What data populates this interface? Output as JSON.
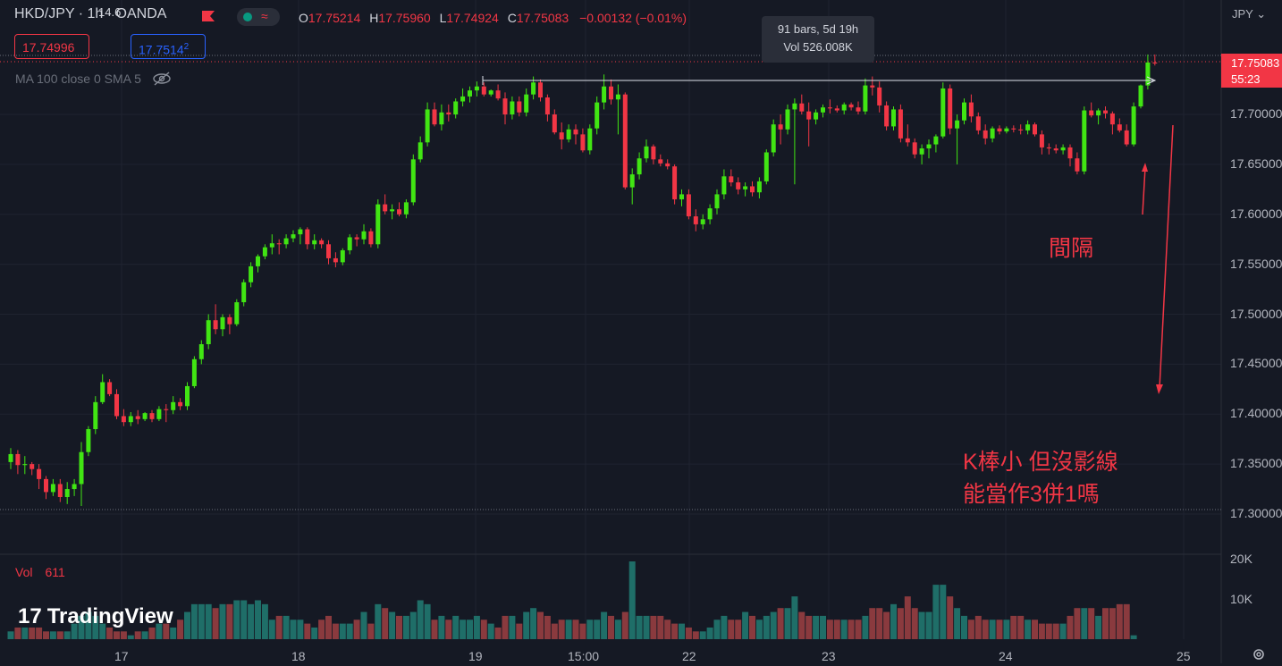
{
  "header": {
    "symbol": "HKD/JPY · 1h · OANDA",
    "open_label": "O",
    "open": "17.75214",
    "high_label": "H",
    "high": "17.75960",
    "low_label": "L",
    "low": "17.74924",
    "close_label": "C",
    "close": "17.75083",
    "change": "−0.00132 (−0.01%)",
    "bid": "17.74996",
    "spread": "14.6",
    "ask": "17.7514",
    "ask_suffix": "2",
    "indicator": "MA 100 close 0 SMA 5"
  },
  "tooltip": {
    "bars": "91 bars, 5d 19h",
    "vol": "Vol 526.008K"
  },
  "price_axis": {
    "currency": "JPY",
    "labels": [
      "17.70000",
      "17.65000",
      "17.60000",
      "17.55000",
      "17.50000",
      "17.45000",
      "17.40000",
      "17.35000",
      "17.30000"
    ],
    "last_price": "17.75083",
    "countdown": "55:23"
  },
  "time_axis": {
    "labels": [
      "17",
      "18",
      "19",
      "15:00",
      "22",
      "23",
      "24",
      "25"
    ]
  },
  "volume": {
    "label": "Vol",
    "value": "611",
    "axis_labels": [
      "20K",
      "10K"
    ]
  },
  "annotations": {
    "gap": "間隔",
    "question_line1": "K棒小 但沒影線",
    "question_line2": "能當作3併1嗎"
  },
  "branding": {
    "logo_text": "TradingView"
  },
  "colors": {
    "background": "#151924",
    "up": "#41e513",
    "down": "#f23645",
    "vol_up": "#1f6e68",
    "vol_down": "#8a3a3e",
    "accent": "#2962ff"
  },
  "chart_data": {
    "type": "candlestick",
    "candles": [
      [
        17.352,
        17.366,
        17.345,
        17.36
      ],
      [
        17.36,
        17.364,
        17.34,
        17.349
      ],
      [
        17.349,
        17.358,
        17.34,
        17.35
      ],
      [
        17.35,
        17.352,
        17.339,
        17.345
      ],
      [
        17.345,
        17.35,
        17.325,
        17.335
      ],
      [
        17.335,
        17.338,
        17.315,
        17.322
      ],
      [
        17.322,
        17.335,
        17.318,
        17.33
      ],
      [
        17.33,
        17.335,
        17.312,
        17.317
      ],
      [
        17.317,
        17.332,
        17.31,
        17.325
      ],
      [
        17.325,
        17.335,
        17.318,
        17.33
      ],
      [
        17.33,
        17.372,
        17.308,
        17.362
      ],
      [
        17.362,
        17.388,
        17.358,
        17.385
      ],
      [
        17.385,
        17.418,
        17.38,
        17.412
      ],
      [
        17.412,
        17.44,
        17.41,
        17.432
      ],
      [
        17.432,
        17.435,
        17.418,
        17.42
      ],
      [
        17.42,
        17.425,
        17.395,
        17.398
      ],
      [
        17.398,
        17.405,
        17.388,
        17.392
      ],
      [
        17.392,
        17.402,
        17.388,
        17.398
      ],
      [
        17.398,
        17.404,
        17.39,
        17.395
      ],
      [
        17.395,
        17.402,
        17.393,
        17.401
      ],
      [
        17.401,
        17.404,
        17.392,
        17.395
      ],
      [
        17.395,
        17.408,
        17.393,
        17.405
      ],
      [
        17.405,
        17.41,
        17.392,
        17.404
      ],
      [
        17.404,
        17.418,
        17.4,
        17.412
      ],
      [
        17.412,
        17.416,
        17.404,
        17.408
      ],
      [
        17.408,
        17.432,
        17.404,
        17.428
      ],
      [
        17.428,
        17.458,
        17.426,
        17.455
      ],
      [
        17.455,
        17.474,
        17.45,
        17.47
      ],
      [
        17.47,
        17.5,
        17.465,
        17.494
      ],
      [
        17.494,
        17.51,
        17.48,
        17.485
      ],
      [
        17.485,
        17.5,
        17.478,
        17.497
      ],
      [
        17.497,
        17.5,
        17.48,
        17.49
      ],
      [
        17.49,
        17.515,
        17.488,
        17.512
      ],
      [
        17.512,
        17.535,
        17.508,
        17.532
      ],
      [
        17.532,
        17.552,
        17.527,
        17.548
      ],
      [
        17.548,
        17.56,
        17.542,
        17.558
      ],
      [
        17.558,
        17.57,
        17.555,
        17.567
      ],
      [
        17.567,
        17.58,
        17.56,
        17.571
      ],
      [
        17.571,
        17.575,
        17.56,
        17.57
      ],
      [
        17.57,
        17.58,
        17.566,
        17.576
      ],
      [
        17.576,
        17.584,
        17.572,
        17.58
      ],
      [
        17.58,
        17.587,
        17.57,
        17.585
      ],
      [
        17.585,
        17.587,
        17.565,
        17.57
      ],
      [
        17.57,
        17.58,
        17.565,
        17.574
      ],
      [
        17.574,
        17.576,
        17.566,
        17.57
      ],
      [
        17.57,
        17.574,
        17.55,
        17.556
      ],
      [
        17.556,
        17.562,
        17.547,
        17.552
      ],
      [
        17.552,
        17.566,
        17.549,
        17.564
      ],
      [
        17.564,
        17.58,
        17.56,
        17.577
      ],
      [
        17.577,
        17.58,
        17.568,
        17.575
      ],
      [
        17.575,
        17.59,
        17.57,
        17.583
      ],
      [
        17.583,
        17.586,
        17.567,
        17.57
      ],
      [
        17.57,
        17.615,
        17.566,
        17.61
      ],
      [
        17.61,
        17.62,
        17.6,
        17.603
      ],
      [
        17.603,
        17.61,
        17.595,
        17.605
      ],
      [
        17.605,
        17.612,
        17.598,
        17.6
      ],
      [
        17.6,
        17.615,
        17.596,
        17.612
      ],
      [
        17.612,
        17.66,
        17.609,
        17.655
      ],
      [
        17.655,
        17.678,
        17.652,
        17.672
      ],
      [
        17.672,
        17.712,
        17.668,
        17.705
      ],
      [
        17.705,
        17.712,
        17.688,
        17.69
      ],
      [
        17.69,
        17.71,
        17.684,
        17.702
      ],
      [
        17.702,
        17.71,
        17.693,
        17.7
      ],
      [
        17.7,
        17.716,
        17.696,
        17.713
      ],
      [
        17.713,
        17.726,
        17.708,
        17.718
      ],
      [
        17.718,
        17.728,
        17.712,
        17.724
      ],
      [
        17.724,
        17.733,
        17.718,
        17.728
      ],
      [
        17.728,
        17.732,
        17.718,
        17.72
      ],
      [
        17.72,
        17.725,
        17.718,
        17.724
      ],
      [
        17.724,
        17.73,
        17.714,
        17.716
      ],
      [
        17.716,
        17.722,
        17.69,
        17.7
      ],
      [
        17.7,
        17.718,
        17.695,
        17.713
      ],
      [
        17.713,
        17.718,
        17.698,
        17.702
      ],
      [
        17.702,
        17.726,
        17.698,
        17.72
      ],
      [
        17.72,
        17.738,
        17.715,
        17.732
      ],
      [
        17.732,
        17.735,
        17.713,
        17.717
      ],
      [
        17.717,
        17.72,
        17.693,
        17.7
      ],
      [
        17.7,
        17.705,
        17.68,
        17.682
      ],
      [
        17.682,
        17.692,
        17.665,
        17.675
      ],
      [
        17.675,
        17.69,
        17.672,
        17.685
      ],
      [
        17.685,
        17.69,
        17.67,
        17.68
      ],
      [
        17.68,
        17.686,
        17.662,
        17.664
      ],
      [
        17.664,
        17.69,
        17.66,
        17.686
      ],
      [
        17.686,
        17.718,
        17.68,
        17.712
      ],
      [
        17.712,
        17.74,
        17.705,
        17.728
      ],
      [
        17.728,
        17.735,
        17.71,
        17.715
      ],
      [
        17.715,
        17.73,
        17.68,
        17.72
      ],
      [
        17.72,
        17.722,
        17.625,
        17.627
      ],
      [
        17.627,
        17.646,
        17.61,
        17.64
      ],
      [
        17.64,
        17.662,
        17.635,
        17.656
      ],
      [
        17.656,
        17.675,
        17.652,
        17.668
      ],
      [
        17.668,
        17.67,
        17.65,
        17.655
      ],
      [
        17.655,
        17.66,
        17.648,
        17.651
      ],
      [
        17.651,
        17.655,
        17.645,
        17.648
      ],
      [
        17.648,
        17.65,
        17.61,
        17.615
      ],
      [
        17.615,
        17.625,
        17.608,
        17.62
      ],
      [
        17.62,
        17.625,
        17.595,
        17.598
      ],
      [
        17.598,
        17.605,
        17.583,
        17.59
      ],
      [
        17.59,
        17.6,
        17.585,
        17.595
      ],
      [
        17.595,
        17.61,
        17.59,
        17.606
      ],
      [
        17.606,
        17.625,
        17.6,
        17.62
      ],
      [
        17.62,
        17.645,
        17.615,
        17.638
      ],
      [
        17.638,
        17.645,
        17.628,
        17.632
      ],
      [
        17.632,
        17.637,
        17.62,
        17.625
      ],
      [
        17.625,
        17.632,
        17.618,
        17.628
      ],
      [
        17.628,
        17.633,
        17.618,
        17.622
      ],
      [
        17.622,
        17.637,
        17.616,
        17.633
      ],
      [
        17.633,
        17.665,
        17.63,
        17.662
      ],
      [
        17.662,
        17.695,
        17.658,
        17.69
      ],
      [
        17.69,
        17.7,
        17.67,
        17.685
      ],
      [
        17.685,
        17.71,
        17.68,
        17.705
      ],
      [
        17.705,
        17.716,
        17.63,
        17.711
      ],
      [
        17.711,
        17.72,
        17.7,
        17.703
      ],
      [
        17.703,
        17.712,
        17.668,
        17.695
      ],
      [
        17.695,
        17.705,
        17.69,
        17.702
      ],
      [
        17.702,
        17.71,
        17.697,
        17.707
      ],
      [
        17.707,
        17.715,
        17.701,
        17.706
      ],
      [
        17.706,
        17.709,
        17.702,
        17.704
      ],
      [
        17.704,
        17.712,
        17.7,
        17.71
      ],
      [
        17.71,
        17.712,
        17.704,
        17.707
      ],
      [
        17.707,
        17.713,
        17.7,
        17.703
      ],
      [
        17.703,
        17.736,
        17.7,
        17.729
      ],
      [
        17.729,
        17.738,
        17.719,
        17.727
      ],
      [
        17.727,
        17.733,
        17.702,
        17.709
      ],
      [
        17.709,
        17.713,
        17.684,
        17.688
      ],
      [
        17.688,
        17.708,
        17.684,
        17.705
      ],
      [
        17.705,
        17.71,
        17.672,
        17.676
      ],
      [
        17.676,
        17.69,
        17.668,
        17.672
      ],
      [
        17.672,
        17.676,
        17.656,
        17.66
      ],
      [
        17.66,
        17.67,
        17.65,
        17.666
      ],
      [
        17.666,
        17.675,
        17.656,
        17.67
      ],
      [
        17.67,
        17.68,
        17.662,
        17.678
      ],
      [
        17.678,
        17.732,
        17.676,
        17.726
      ],
      [
        17.726,
        17.73,
        17.68,
        17.686
      ],
      [
        17.686,
        17.7,
        17.65,
        17.694
      ],
      [
        17.694,
        17.716,
        17.69,
        17.712
      ],
      [
        17.712,
        17.72,
        17.692,
        17.698
      ],
      [
        17.698,
        17.702,
        17.68,
        17.684
      ],
      [
        17.684,
        17.69,
        17.67,
        17.676
      ],
      [
        17.676,
        17.688,
        17.672,
        17.686
      ],
      [
        17.686,
        17.689,
        17.68,
        17.683
      ],
      [
        17.683,
        17.688,
        17.681,
        17.686
      ],
      [
        17.686,
        17.689,
        17.682,
        17.685
      ],
      [
        17.685,
        17.69,
        17.68,
        17.684
      ],
      [
        17.684,
        17.694,
        17.68,
        17.69
      ],
      [
        17.69,
        17.692,
        17.678,
        17.68
      ],
      [
        17.68,
        17.684,
        17.66,
        17.667
      ],
      [
        17.667,
        17.671,
        17.66,
        17.666
      ],
      [
        17.666,
        17.67,
        17.661,
        17.664
      ],
      [
        17.664,
        17.67,
        17.66,
        17.667
      ],
      [
        17.667,
        17.67,
        17.648,
        17.656
      ],
      [
        17.656,
        17.662,
        17.64,
        17.643
      ],
      [
        17.643,
        17.708,
        17.64,
        17.704
      ],
      [
        17.704,
        17.712,
        17.697,
        17.699
      ],
      [
        17.699,
        17.706,
        17.69,
        17.704
      ],
      [
        17.704,
        17.708,
        17.696,
        17.701
      ],
      [
        17.701,
        17.703,
        17.68,
        17.69
      ],
      [
        17.69,
        17.696,
        17.682,
        17.684
      ],
      [
        17.684,
        17.69,
        17.668,
        17.67
      ],
      [
        17.67,
        17.712,
        17.668,
        17.708
      ],
      [
        17.708,
        17.73,
        17.706,
        17.729
      ],
      [
        17.729,
        17.76,
        17.725,
        17.752
      ],
      [
        17.752,
        17.76,
        17.749,
        17.751
      ]
    ],
    "volume": [
      2,
      3,
      3,
      3,
      3,
      2,
      2,
      2,
      2,
      4,
      6,
      7,
      6,
      4,
      3,
      2,
      2,
      1,
      2,
      2,
      3,
      4,
      4,
      3,
      5,
      7,
      9,
      9,
      9,
      8,
      9,
      9,
      10,
      10,
      9,
      10,
      9,
      5,
      6,
      6,
      5,
      5,
      4,
      3,
      5,
      6,
      4,
      4,
      4,
      5,
      7,
      4,
      9,
      8,
      7,
      6,
      6,
      7,
      10,
      9,
      5,
      6,
      5,
      6,
      5,
      5,
      6,
      5,
      4,
      3,
      6,
      6,
      4,
      7,
      8,
      7,
      6,
      4,
      5,
      5,
      5,
      4,
      5,
      5,
      7,
      6,
      5,
      7,
      20,
      6,
      6,
      6,
      6,
      5,
      4,
      4,
      3,
      2,
      2,
      3,
      5,
      6,
      5,
      5,
      7,
      6,
      5,
      6,
      7,
      8,
      8,
      11,
      7,
      6,
      6,
      6,
      5,
      5,
      5,
      5,
      5,
      6,
      8,
      8,
      7,
      9,
      8,
      11,
      8,
      7,
      7,
      14,
      14,
      11,
      8,
      6,
      5,
      6,
      5,
      5,
      5,
      5,
      6,
      6,
      5,
      5,
      4,
      4,
      4,
      4,
      6,
      8,
      8,
      8,
      6,
      8,
      8,
      9,
      9,
      1
    ],
    "ylim": [
      17.285,
      17.775
    ],
    "volume_max": 20000
  }
}
